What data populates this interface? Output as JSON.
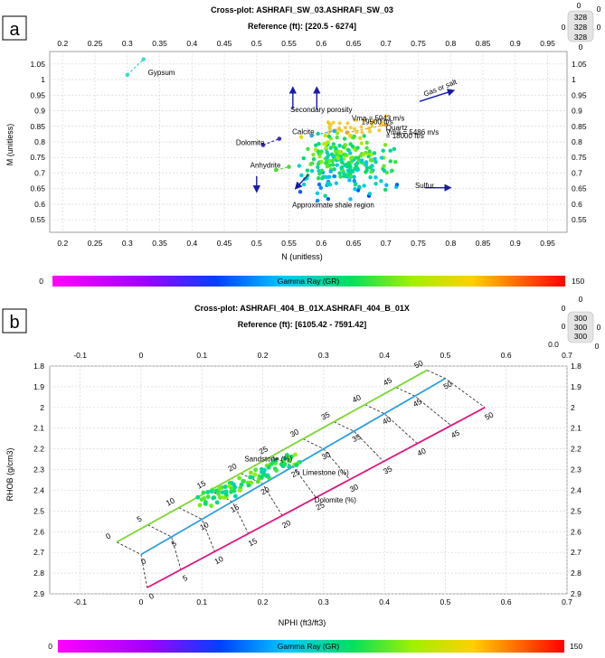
{
  "colors": {
    "yellow_glyph_color": "#f0c419",
    "arrow_color": "#1a1aa8",
    "sandstone_line": "#7dd631",
    "limestone_line": "#2b9fe0",
    "dolomite_line": "#e0187e"
  },
  "panel_a": {
    "panel_label": "a",
    "corner_values": [
      "0",
      "328",
      "0",
      "0",
      "328",
      "0",
      "328",
      "0"
    ],
    "colorbar": {
      "label": "Gamma Ray (GR)",
      "min_label": "0",
      "max_label": "150"
    },
    "annotations": {
      "gypsum": "Gypsum",
      "secondary_porosity": "Secondary porosity",
      "gas_or_salt": "Gas or salt",
      "vma_1": "Vma = 5943 m/s",
      "vma_1b": "19500 ft/s",
      "quartz": "Quartz",
      "vma_2": "Vma = 5486 m/s",
      "vma_2b": "= 18000 ft/s",
      "calcite": "Calcite",
      "dolomite": "Dolomite",
      "anhydrite": "Anhydrite",
      "sulfur": "Sulfur",
      "shale": "Approximate shale region"
    }
  },
  "panel_b": {
    "panel_label": "b",
    "corner_values": [
      "0",
      "0",
      "300",
      "0",
      "300",
      "0",
      "300",
      "0",
      "0.0"
    ],
    "colorbar": {
      "label": "Gamma Ray (GR)",
      "min_label": "0",
      "max_label": "150"
    },
    "annotations": {
      "sandstone": "Sandstone (%)",
      "limestone": "Limestone (%)",
      "dolomite": "Dolomite (%)"
    },
    "chart_lines": {
      "sandstone_labels": [
        "0",
        "5",
        "10",
        "15",
        "20",
        "25",
        "30",
        "35",
        "40",
        "45",
        "50"
      ],
      "limestone_labels": [
        "0",
        "5",
        "10",
        "15",
        "20",
        "25",
        "30",
        "35",
        "40",
        "45",
        "50"
      ],
      "dolomite_labels": [
        "0",
        "5",
        "10",
        "15",
        "20",
        "25",
        "30",
        "35",
        "40",
        "45",
        "50"
      ]
    }
  },
  "chart_data": [
    {
      "type": "scatter",
      "title": "Cross-plot: ASHRAFI_SW_03.ASHRAFI_SW_03",
      "subtitle": "Reference (ft): [220.5 - 6274]",
      "xlabel": "N (unitless)",
      "ylabel": "M (unitless)",
      "xlim": [
        0.18,
        0.98
      ],
      "ylim": [
        0.51,
        1.09
      ],
      "xticks": [
        "0.2",
        "0.25",
        "0.3",
        "0.35",
        "0.4",
        "0.45",
        "0.5",
        "0.55",
        "0.6",
        "0.65",
        "0.7",
        "0.75",
        "0.8",
        "0.85",
        "0.9",
        "0.95"
      ],
      "yticks": [
        "0.55",
        "0.6",
        "0.65",
        "0.7",
        "0.75",
        "0.8",
        "0.85",
        "0.9",
        "0.95",
        "1",
        "1.05"
      ],
      "color_scale": "Gamma Ray (GR)",
      "cluster": {
        "n_center": 0.635,
        "m_center": 0.73,
        "spread_n": 0.035,
        "spread_m": 0.05,
        "count": 260
      },
      "mineral_points": [
        {
          "name": "Gypsum",
          "n": [
            0.3,
            0.325
          ],
          "m": [
            1.015,
            1.065
          ]
        },
        {
          "name": "Dolomite",
          "n": [
            0.51,
            0.535
          ],
          "m": [
            0.79,
            0.81
          ]
        },
        {
          "name": "Calcite",
          "n": [
            0.585,
            0.62
          ],
          "m": [
            0.82,
            0.835
          ]
        },
        {
          "name": "Anhydrite",
          "n": [
            0.53,
            0.55
          ],
          "m": [
            0.71,
            0.72
          ]
        },
        {
          "name": "Quartz",
          "n": [
            0.64,
            0.7
          ],
          "m": [
            0.83,
            0.855
          ]
        }
      ],
      "arrows": [
        {
          "name": "secondary porosity 1",
          "from": [
            0.556,
            0.905
          ],
          "to": [
            0.556,
            0.975
          ]
        },
        {
          "name": "secondary porosity 2",
          "from": [
            0.593,
            0.905
          ],
          "to": [
            0.593,
            0.975
          ]
        },
        {
          "name": "gas or salt",
          "from": [
            0.752,
            0.93
          ],
          "to": [
            0.805,
            0.965
          ]
        },
        {
          "name": "anhydrite dir",
          "from": [
            0.5,
            0.69
          ],
          "to": [
            0.5,
            0.64
          ]
        },
        {
          "name": "dolomite dir",
          "from": [
            0.58,
            0.695
          ],
          "to": [
            0.56,
            0.65
          ]
        },
        {
          "name": "sulfur",
          "from": [
            0.76,
            0.653
          ],
          "to": [
            0.8,
            0.653
          ]
        }
      ]
    },
    {
      "type": "scatter",
      "title": "Cross-plot: ASHRAFI_404_B_01X.ASHRAFI_404_B_01X",
      "subtitle": "Reference (ft): [6105.42 - 7591.42]",
      "xlabel": "NPHI (ft3/ft3)",
      "ylabel": "RHOB (g/cm3)",
      "xlim": [
        -0.15,
        0.7
      ],
      "ylim": [
        1.8,
        2.9
      ],
      "xticks": [
        "-0.1",
        "0",
        "0.1",
        "0.2",
        "0.3",
        "0.4",
        "0.5",
        "0.6",
        "0.7"
      ],
      "yticks": [
        "1.8",
        "1.9",
        "2",
        "2.1",
        "2.2",
        "2.3",
        "2.4",
        "2.5",
        "2.6",
        "2.7",
        "2.8",
        "2.9"
      ],
      "color_scale": "Gamma Ray (GR)",
      "cluster": {
        "nphi_from": 0.1,
        "nphi_to": 0.25,
        "rhob_from": 2.46,
        "rhob_to": 2.24,
        "count": 90
      },
      "lithology_lines": [
        {
          "name": "Sandstone",
          "nphi": [
            -0.04,
            0.47
          ],
          "rhob": [
            2.65,
            1.82
          ]
        },
        {
          "name": "Limestone",
          "nphi": [
            0.0,
            0.5
          ],
          "rhob": [
            2.71,
            1.86
          ]
        },
        {
          "name": "Dolomite",
          "nphi": [
            0.01,
            0.565
          ],
          "rhob": [
            2.87,
            2.0
          ]
        }
      ]
    }
  ]
}
